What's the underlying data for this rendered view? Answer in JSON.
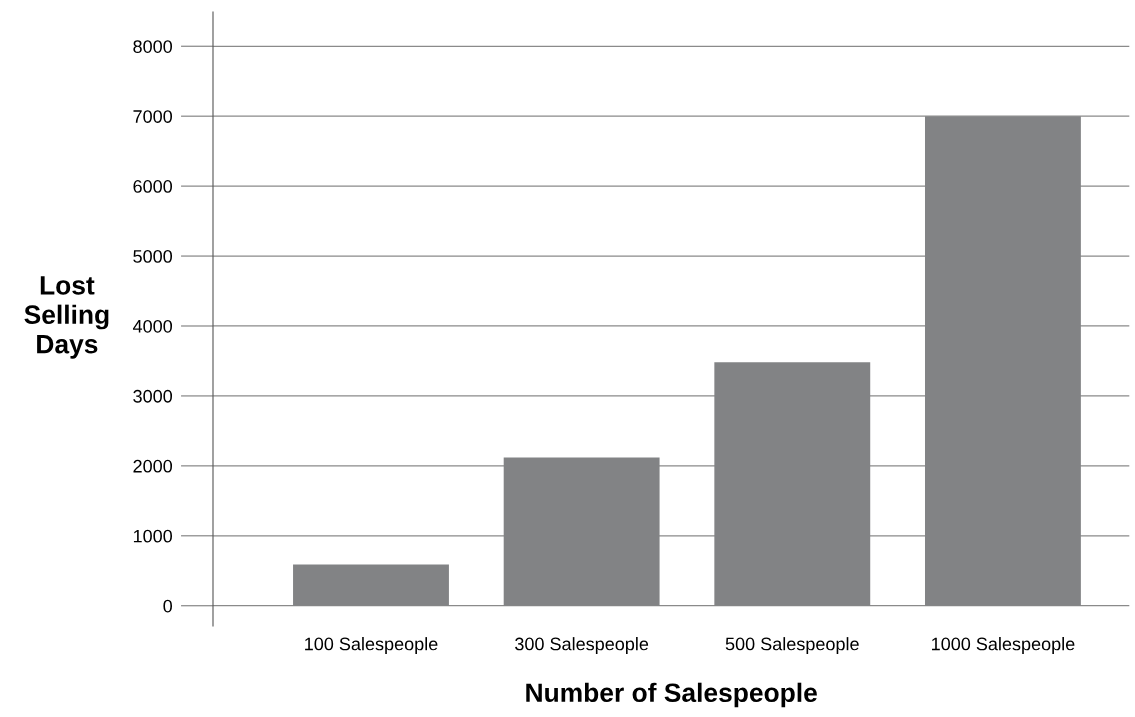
{
  "chart_data": {
    "type": "bar",
    "xlabel": "Number of Salespeople",
    "ylabel": "Lost\nSelling\nDays",
    "categories": [
      "100 Salespeople",
      "300 Salespeople",
      "500 Salespeople",
      "1000 Salespeople"
    ],
    "values": [
      590,
      2120,
      3480,
      7000
    ],
    "color": "#828385",
    "ylim": [
      -290,
      8490
    ],
    "yticks": [
      0,
      1000,
      2000,
      3000,
      4000,
      5000,
      6000,
      7000,
      8000
    ],
    "grid": "y"
  }
}
